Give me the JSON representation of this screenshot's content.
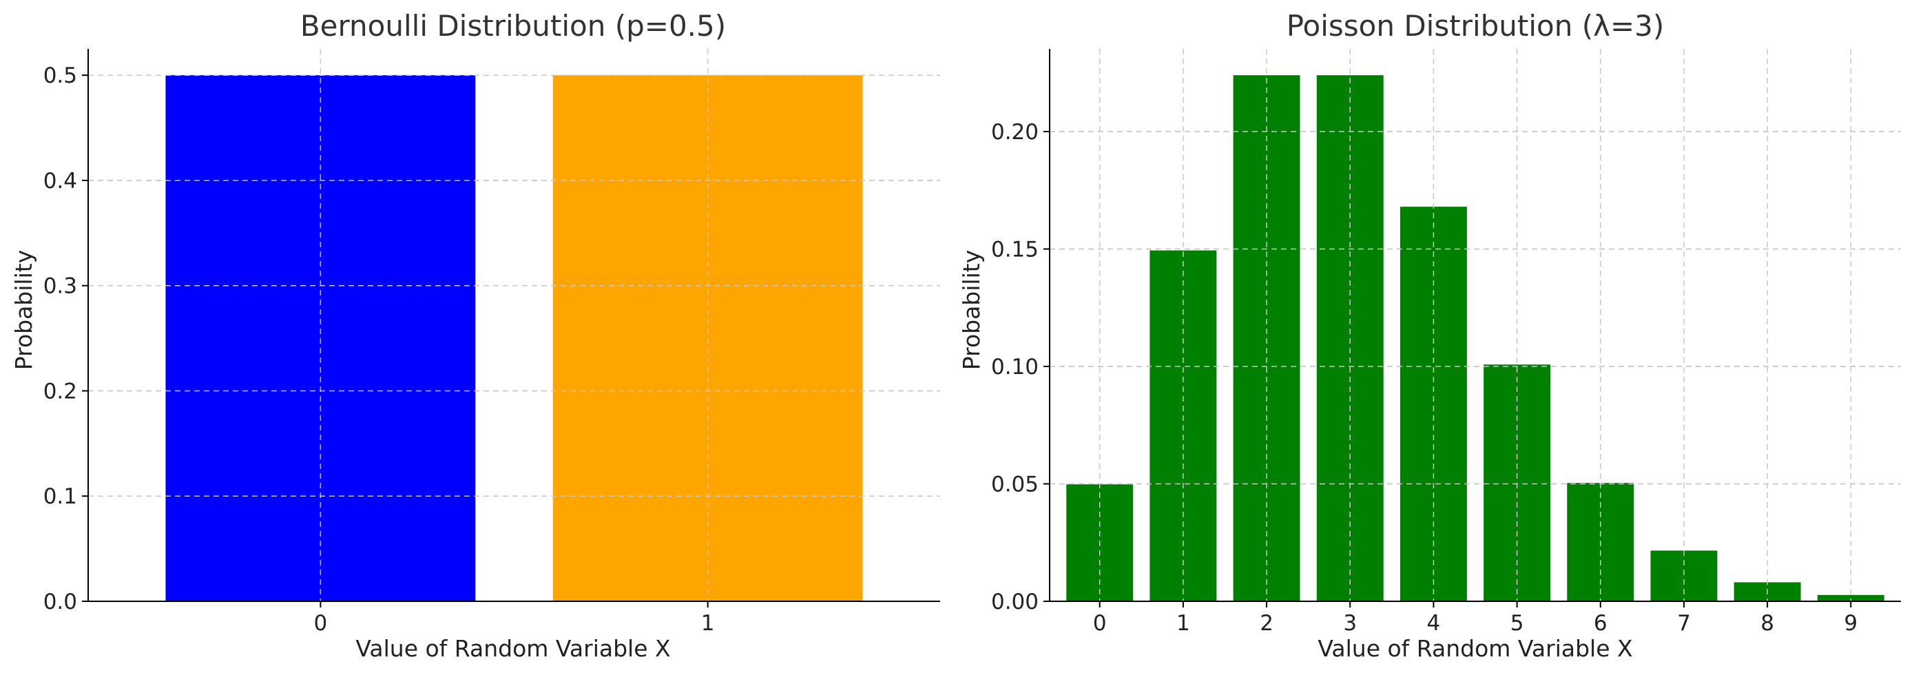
{
  "chart_data": [
    {
      "type": "bar",
      "title": "Bernoulli Distribution (p=0.5)",
      "xlabel": "Value of Random Variable X",
      "ylabel": "Probability",
      "categories": [
        "0",
        "1"
      ],
      "values": [
        0.5,
        0.5
      ],
      "colors": [
        "#0000ff",
        "#ffa500"
      ],
      "ylim": [
        0,
        0.525
      ],
      "yticks": [
        "0.0",
        "0.1",
        "0.2",
        "0.3",
        "0.4",
        "0.5"
      ],
      "grid": true
    },
    {
      "type": "bar",
      "title": "Poisson Distribution (λ=3)",
      "xlabel": "Value of Random Variable X",
      "ylabel": "Probability",
      "categories": [
        "0",
        "1",
        "2",
        "3",
        "4",
        "5",
        "6",
        "7",
        "8",
        "9"
      ],
      "values": [
        0.0498,
        0.1494,
        0.224,
        0.224,
        0.168,
        0.1008,
        0.0504,
        0.0216,
        0.0081,
        0.0027
      ],
      "colors": [
        "#008000"
      ],
      "ylim": [
        0,
        0.2352
      ],
      "yticks": [
        "0.00",
        "0.05",
        "0.10",
        "0.15",
        "0.20"
      ],
      "grid": true
    }
  ]
}
